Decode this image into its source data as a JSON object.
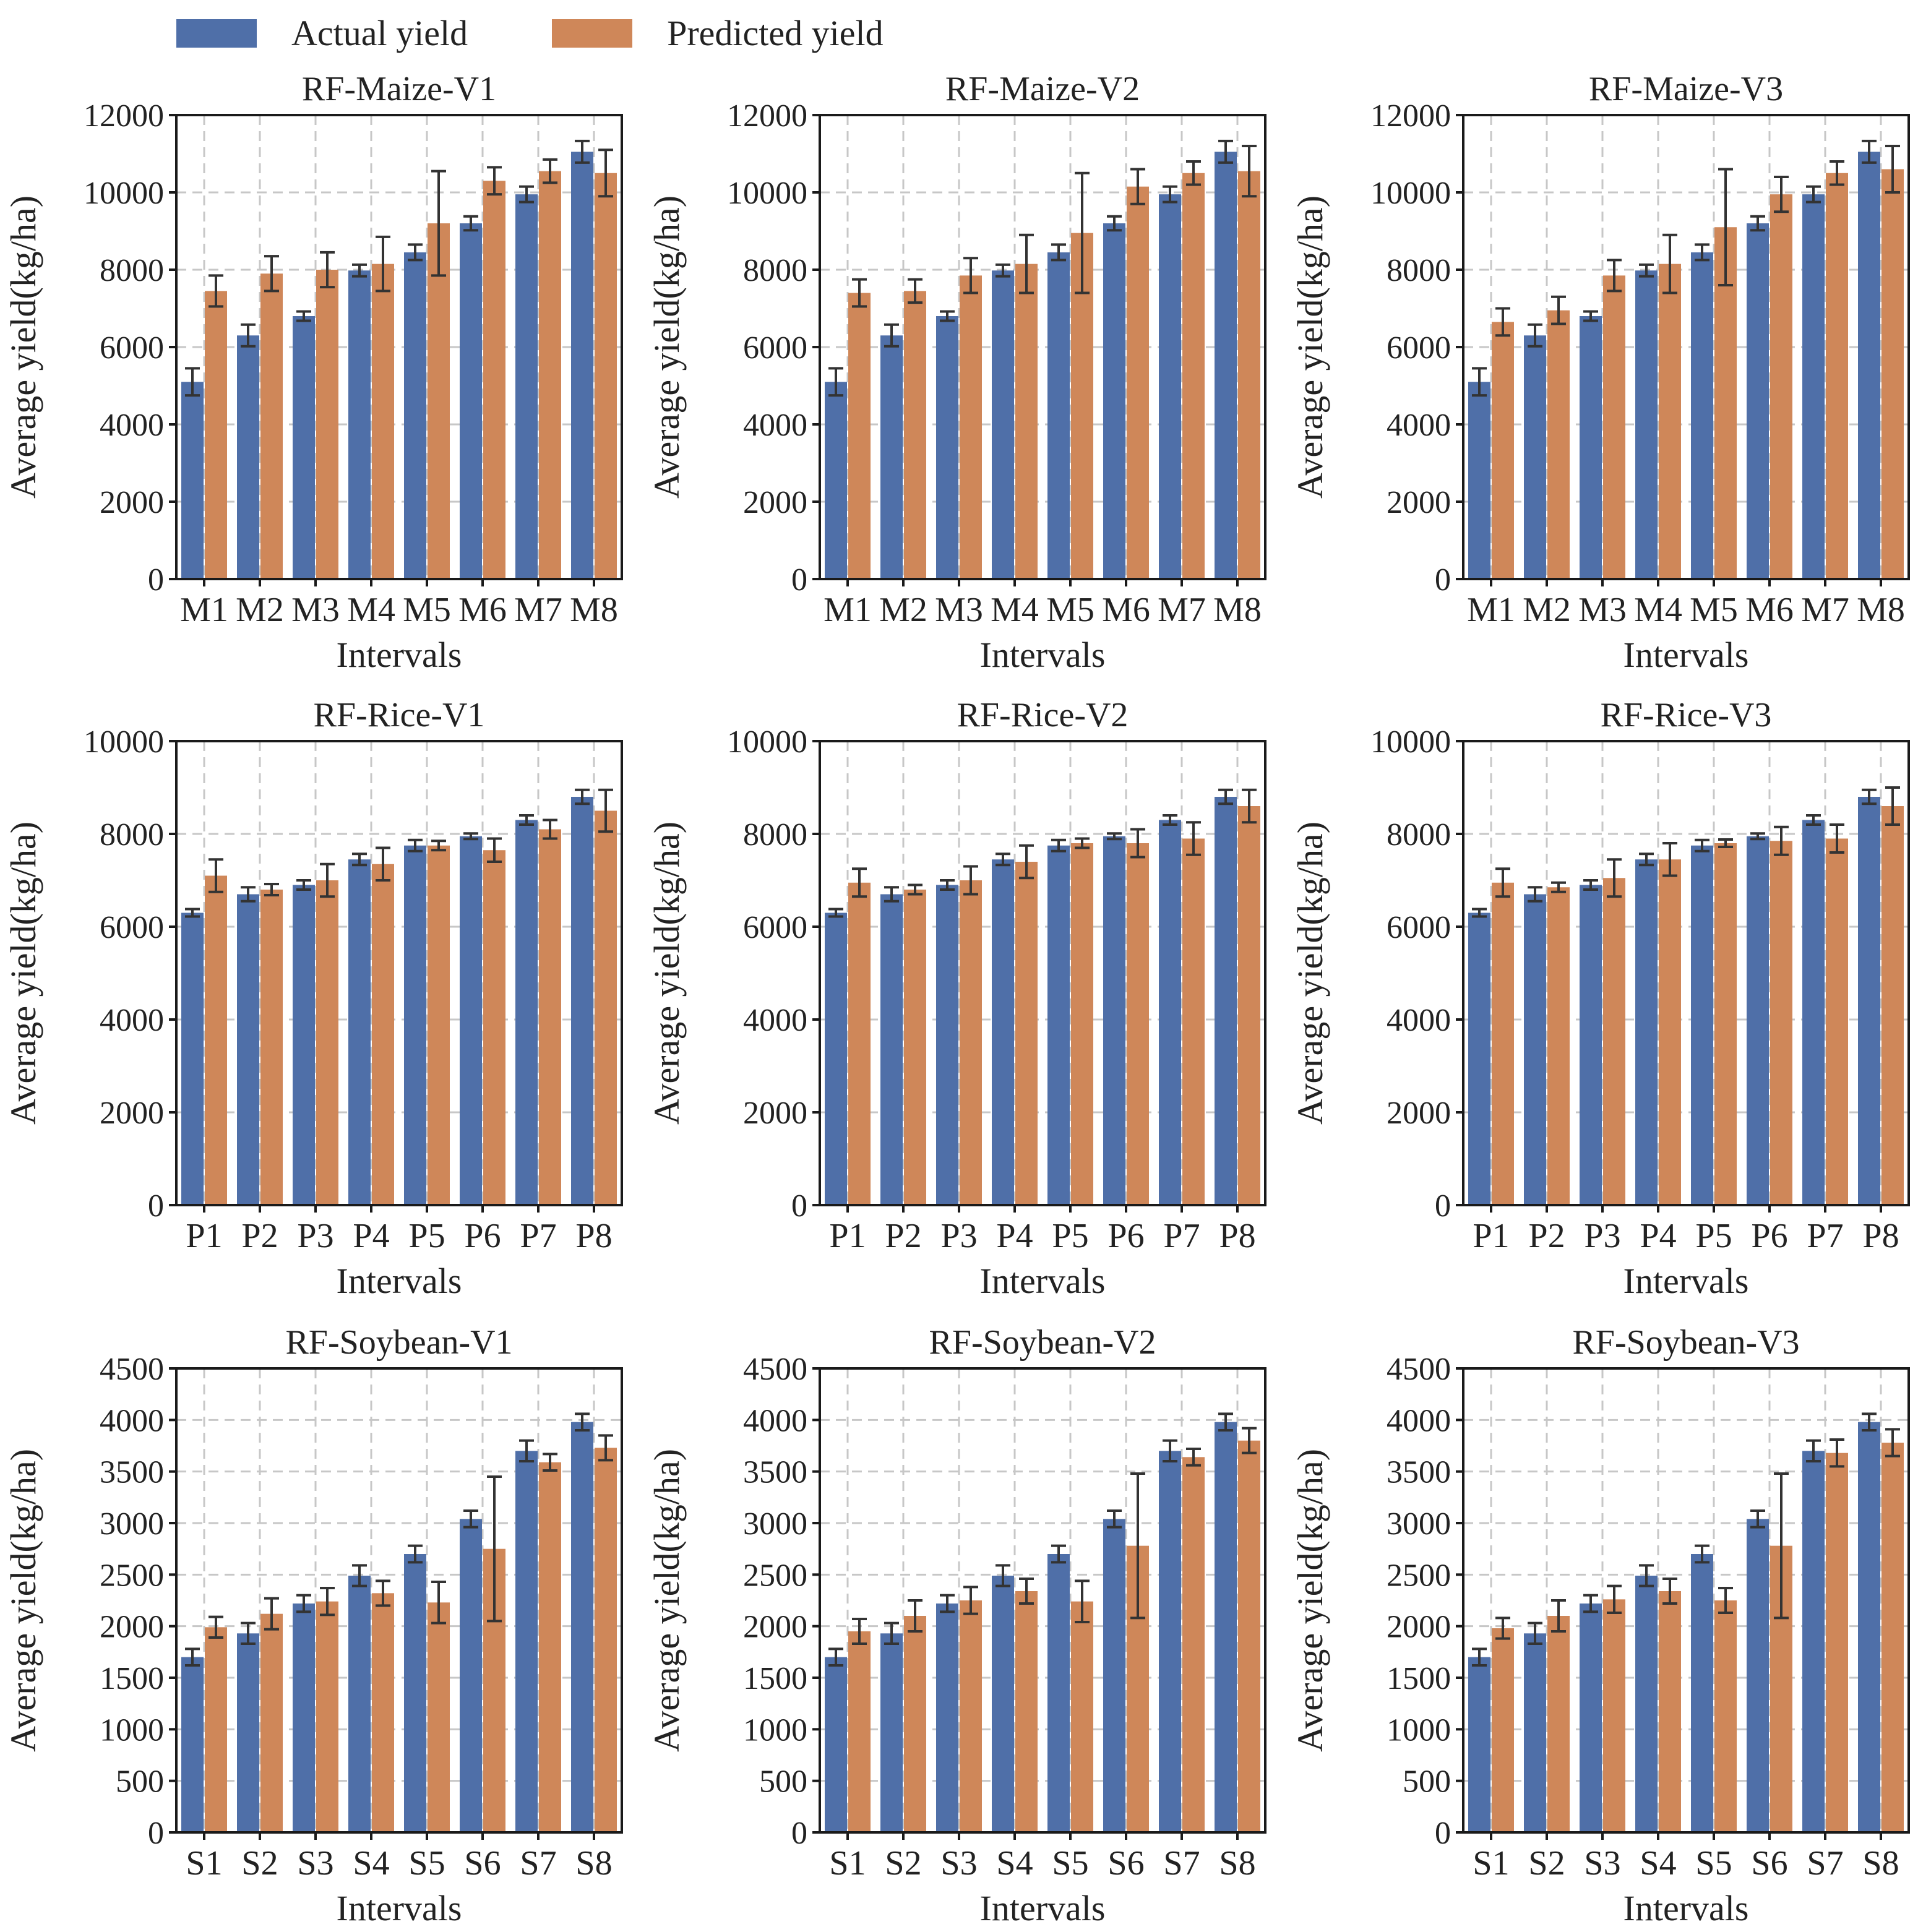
{
  "legend": {
    "actual_label": "Actual yield",
    "predicted_label": "Predicted yield"
  },
  "colors": {
    "actual": "#4f6fa8",
    "predicted": "#cf8759",
    "error": "#333333",
    "grid": "#c7c7c7"
  },
  "chart_data": [
    {
      "type": "bar",
      "title": "RF-Maize-V1",
      "xlabel": "Intervals",
      "ylabel": "Average yield(kg/ha)",
      "ylim": [
        0,
        12000
      ],
      "yticks": [
        0,
        2000,
        4000,
        6000,
        8000,
        10000,
        12000
      ],
      "grid": true,
      "categories": [
        "M1",
        "M2",
        "M3",
        "M4",
        "M5",
        "M6",
        "M7",
        "M8"
      ],
      "series": [
        {
          "name": "Actual yield",
          "values": [
            5100,
            6300,
            6800,
            7980,
            8450,
            9200,
            9950,
            11050
          ],
          "errors": [
            350,
            280,
            120,
            150,
            200,
            180,
            200,
            280
          ]
        },
        {
          "name": "Predicted yield",
          "values": [
            7450,
            7900,
            8000,
            8150,
            9200,
            10300,
            10550,
            10500
          ],
          "errors": [
            400,
            450,
            450,
            700,
            1350,
            350,
            300,
            600
          ]
        }
      ]
    },
    {
      "type": "bar",
      "title": "RF-Maize-V2",
      "xlabel": "Intervals",
      "ylabel": "Average yield(kg/ha)",
      "ylim": [
        0,
        12000
      ],
      "yticks": [
        0,
        2000,
        4000,
        6000,
        8000,
        10000,
        12000
      ],
      "grid": true,
      "categories": [
        "M1",
        "M2",
        "M3",
        "M4",
        "M5",
        "M6",
        "M7",
        "M8"
      ],
      "series": [
        {
          "name": "Actual yield",
          "values": [
            5100,
            6300,
            6800,
            7980,
            8450,
            9200,
            9950,
            11050
          ],
          "errors": [
            350,
            280,
            120,
            150,
            200,
            180,
            200,
            280
          ]
        },
        {
          "name": "Predicted yield",
          "values": [
            7400,
            7450,
            7850,
            8150,
            8950,
            10150,
            10500,
            10550
          ],
          "errors": [
            350,
            300,
            450,
            750,
            1550,
            450,
            300,
            650
          ]
        }
      ]
    },
    {
      "type": "bar",
      "title": "RF-Maize-V3",
      "xlabel": "Intervals",
      "ylabel": "Average yield(kg/ha)",
      "ylim": [
        0,
        12000
      ],
      "yticks": [
        0,
        2000,
        4000,
        6000,
        8000,
        10000,
        12000
      ],
      "grid": true,
      "categories": [
        "M1",
        "M2",
        "M3",
        "M4",
        "M5",
        "M6",
        "M7",
        "M8"
      ],
      "series": [
        {
          "name": "Actual yield",
          "values": [
            5100,
            6300,
            6800,
            7980,
            8450,
            9200,
            9950,
            11050
          ],
          "errors": [
            350,
            280,
            120,
            150,
            200,
            180,
            200,
            280
          ]
        },
        {
          "name": "Predicted yield",
          "values": [
            6650,
            6950,
            7850,
            8150,
            9100,
            9950,
            10500,
            10600
          ],
          "errors": [
            350,
            350,
            400,
            750,
            1500,
            450,
            300,
            600
          ]
        }
      ]
    },
    {
      "type": "bar",
      "title": "RF-Rice-V1",
      "xlabel": "Intervals",
      "ylabel": "Average yield(kg/ha)",
      "ylim": [
        0,
        10000
      ],
      "yticks": [
        0,
        2000,
        4000,
        6000,
        8000,
        10000
      ],
      "grid": true,
      "categories": [
        "P1",
        "P2",
        "P3",
        "P4",
        "P5",
        "P6",
        "P7",
        "P8"
      ],
      "series": [
        {
          "name": "Actual yield",
          "values": [
            6300,
            6700,
            6900,
            7450,
            7750,
            7950,
            8300,
            8800
          ],
          "errors": [
            80,
            150,
            100,
            120,
            120,
            60,
            100,
            150
          ]
        },
        {
          "name": "Predicted yield",
          "values": [
            7100,
            6800,
            7000,
            7350,
            7750,
            7650,
            8100,
            8500
          ],
          "errors": [
            350,
            120,
            350,
            350,
            100,
            250,
            200,
            450
          ]
        }
      ]
    },
    {
      "type": "bar",
      "title": "RF-Rice-V2",
      "xlabel": "Intervals",
      "ylabel": "Average yield(kg/ha)",
      "ylim": [
        0,
        10000
      ],
      "yticks": [
        0,
        2000,
        4000,
        6000,
        8000,
        10000
      ],
      "grid": true,
      "categories": [
        "P1",
        "P2",
        "P3",
        "P4",
        "P5",
        "P6",
        "P7",
        "P8"
      ],
      "series": [
        {
          "name": "Actual yield",
          "values": [
            6300,
            6700,
            6900,
            7450,
            7750,
            7950,
            8300,
            8800
          ],
          "errors": [
            80,
            150,
            100,
            120,
            120,
            60,
            100,
            150
          ]
        },
        {
          "name": "Predicted yield",
          "values": [
            6950,
            6800,
            7000,
            7400,
            7800,
            7800,
            7900,
            8600
          ],
          "errors": [
            300,
            100,
            300,
            350,
            100,
            300,
            350,
            350
          ]
        }
      ]
    },
    {
      "type": "bar",
      "title": "RF-Rice-V3",
      "xlabel": "Intervals",
      "ylabel": "Average yield(kg/ha)",
      "ylim": [
        0,
        10000
      ],
      "yticks": [
        0,
        2000,
        4000,
        6000,
        8000,
        10000
      ],
      "grid": true,
      "categories": [
        "P1",
        "P2",
        "P3",
        "P4",
        "P5",
        "P6",
        "P7",
        "P8"
      ],
      "series": [
        {
          "name": "Actual yield",
          "values": [
            6300,
            6700,
            6900,
            7450,
            7750,
            7950,
            8300,
            8800
          ],
          "errors": [
            80,
            150,
            100,
            120,
            120,
            60,
            100,
            150
          ]
        },
        {
          "name": "Predicted yield",
          "values": [
            6950,
            6850,
            7050,
            7450,
            7800,
            7850,
            7900,
            8600
          ],
          "errors": [
            300,
            100,
            400,
            350,
            80,
            300,
            300,
            400
          ]
        }
      ]
    },
    {
      "type": "bar",
      "title": "RF-Soybean-V1",
      "xlabel": "Intervals",
      "ylabel": "Average yield(kg/ha)",
      "ylim": [
        0,
        4500
      ],
      "yticks": [
        0,
        500,
        1000,
        1500,
        2000,
        2500,
        3000,
        3500,
        4000,
        4500
      ],
      "grid": true,
      "categories": [
        "S1",
        "S2",
        "S3",
        "S4",
        "S5",
        "S6",
        "S7",
        "S8"
      ],
      "series": [
        {
          "name": "Actual yield",
          "values": [
            1700,
            1930,
            2220,
            2490,
            2700,
            3040,
            3700,
            3980
          ],
          "errors": [
            80,
            100,
            80,
            100,
            80,
            80,
            100,
            80
          ]
        },
        {
          "name": "Predicted yield",
          "values": [
            1990,
            2120,
            2240,
            2320,
            2230,
            2750,
            3590,
            3730
          ],
          "errors": [
            100,
            150,
            130,
            120,
            200,
            700,
            80,
            120
          ]
        }
      ]
    },
    {
      "type": "bar",
      "title": "RF-Soybean-V2",
      "xlabel": "Intervals",
      "ylabel": "Average yield(kg/ha)",
      "ylim": [
        0,
        4500
      ],
      "yticks": [
        0,
        500,
        1000,
        1500,
        2000,
        2500,
        3000,
        3500,
        4000,
        4500
      ],
      "grid": true,
      "categories": [
        "S1",
        "S2",
        "S3",
        "S4",
        "S5",
        "S6",
        "S7",
        "S8"
      ],
      "series": [
        {
          "name": "Actual yield",
          "values": [
            1700,
            1930,
            2220,
            2490,
            2700,
            3040,
            3700,
            3980
          ],
          "errors": [
            80,
            100,
            80,
            100,
            80,
            80,
            100,
            80
          ]
        },
        {
          "name": "Predicted yield",
          "values": [
            1950,
            2100,
            2250,
            2340,
            2240,
            2780,
            3640,
            3800
          ],
          "errors": [
            120,
            150,
            130,
            120,
            200,
            700,
            80,
            120
          ]
        }
      ]
    },
    {
      "type": "bar",
      "title": "RF-Soybean-V3",
      "xlabel": "Intervals",
      "ylabel": "Average yield(kg/ha)",
      "ylim": [
        0,
        4500
      ],
      "yticks": [
        0,
        500,
        1000,
        1500,
        2000,
        2500,
        3000,
        3500,
        4000,
        4500
      ],
      "grid": true,
      "categories": [
        "S1",
        "S2",
        "S3",
        "S4",
        "S5",
        "S6",
        "S7",
        "S8"
      ],
      "series": [
        {
          "name": "Actual yield",
          "values": [
            1700,
            1930,
            2220,
            2490,
            2700,
            3040,
            3700,
            3980
          ],
          "errors": [
            80,
            100,
            80,
            100,
            80,
            80,
            100,
            80
          ]
        },
        {
          "name": "Predicted yield",
          "values": [
            1980,
            2100,
            2260,
            2340,
            2250,
            2780,
            3680,
            3780
          ],
          "errors": [
            100,
            150,
            130,
            120,
            120,
            700,
            130,
            130
          ]
        }
      ]
    }
  ]
}
